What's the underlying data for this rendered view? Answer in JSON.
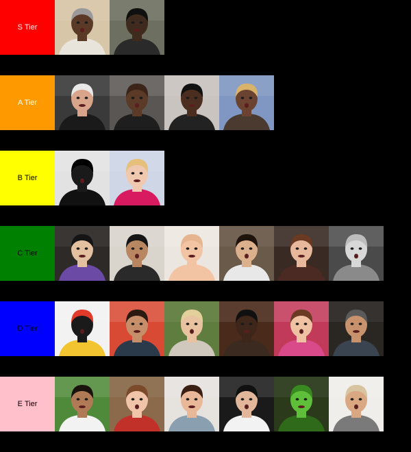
{
  "tiers": [
    {
      "key": "s",
      "label": "S Tier",
      "color": "#ff0000",
      "text_color": "#ffffff",
      "items": [
        {
          "name": "man-gray-durag-surprised",
          "bg": "#d8c6a8",
          "skin": "#5a3a26",
          "hair": "#9a9a9a",
          "shirt": "#e8e4dc"
        },
        {
          "name": "man-black-cap-shocked",
          "bg": "#6d7060",
          "skin": "#3f2a1e",
          "hair": "#101010",
          "shirt": "#2a2a2a"
        }
      ]
    },
    {
      "key": "a",
      "label": "A Tier",
      "color": "#ff9900",
      "text_color": "#ffffff",
      "items": [
        {
          "name": "older-man-white-hair",
          "bg": "#3a3a3a",
          "skin": "#d9a48c",
          "hair": "#e8e8e8",
          "shirt": "#1a1a1a"
        },
        {
          "name": "bald-man-smiling",
          "bg": "#5a5654",
          "skin": "#5b3a28",
          "hair": "#3b2418",
          "shirt": "#1e1e1e"
        },
        {
          "name": "man-headphones-smiling",
          "bg": "#c9c4c0",
          "skin": "#4b2e1f",
          "hair": "#111111",
          "shirt": "#222222"
        },
        {
          "name": "woman-blonde-wig",
          "bg": "#7f97c2",
          "skin": "#6b4330",
          "hair": "#d9b36a",
          "shirt": "#4a3a30"
        }
      ]
    },
    {
      "key": "b",
      "label": "B Tier",
      "color": "#ffff00",
      "text_color": "#000000",
      "items": [
        {
          "name": "black-figurine-statue",
          "bg": "#e2e2e2",
          "skin": "#1a1a1a",
          "hair": "#000000",
          "shirt": "#111111"
        },
        {
          "name": "doll-lying-down",
          "bg": "#cfd6e6",
          "skin": "#f0c8b0",
          "hair": "#e6c07a",
          "shirt": "#d81b60"
        }
      ]
    },
    {
      "key": "c",
      "label": "C Tier",
      "color": "#008000",
      "text_color": "#000000",
      "items": [
        {
          "name": "person-round-glasses",
          "bg": "#2e2a28",
          "skin": "#e3c0a0",
          "hair": "#151515",
          "shirt": "#6b4aa6"
        },
        {
          "name": "man-squinting",
          "bg": "#d9d4cc",
          "skin": "#b98662",
          "hair": "#151515",
          "shirt": "#2a2a2a"
        },
        {
          "name": "baby-smiling",
          "bg": "#ece6e0",
          "skin": "#f2c4a4",
          "hair": "#e6b48e",
          "shirt": "#f2c4a4"
        },
        {
          "name": "teen-grimacing",
          "bg": "#6a5a4a",
          "skin": "#dbb08c",
          "hair": "#1f140c",
          "shirt": "#e8e8e8"
        },
        {
          "name": "girl-braids-surprised",
          "bg": "#3a2a24",
          "skin": "#e8b89c",
          "hair": "#6a3a22",
          "shirt": "#4a2a22"
        },
        {
          "name": "toddler-grayscale-laughing",
          "bg": "#4a4a4a",
          "skin": "#d8d8d8",
          "hair": "#bdbdbd",
          "shirt": "#8a8a8a"
        }
      ]
    },
    {
      "key": "d",
      "label": "D Tier",
      "color": "#0000ff",
      "text_color": "#000000",
      "items": [
        {
          "name": "fruit-sad-face-plate",
          "bg": "#f2f2f2",
          "skin": "#1a1a1a",
          "hair": "#e23a2a",
          "shirt": "#f2c530"
        },
        {
          "name": "bearded-man-headphones",
          "bg": "#d84a34",
          "skin": "#c78e6a",
          "hair": "#2a1a12",
          "shirt": "#2a3a4a"
        },
        {
          "name": "blonde-woman-forest",
          "bg": "#5f7d3e",
          "skin": "#e9c2a2",
          "hair": "#e3cf9a",
          "shirt": "#d0c8bc"
        },
        {
          "name": "man-headphones-dark",
          "bg": "#4a2a1a",
          "skin": "#3f261a",
          "hair": "#101010",
          "shirt": "#3a2a20"
        },
        {
          "name": "girl-hand-mouth",
          "bg": "#c23a5a",
          "skin": "#efc2a4",
          "hair": "#6a3a22",
          "shirt": "#d84a8a"
        },
        {
          "name": "man-beanie-serious",
          "bg": "#2a2622",
          "skin": "#c8926c",
          "hair": "#5a5a5a",
          "shirt": "#3a4450"
        }
      ]
    },
    {
      "key": "e",
      "label": "E Tier",
      "color": "#ffc0cb",
      "text_color": "#000000",
      "items": [
        {
          "name": "girl-soccer-field",
          "bg": "#4f8a3a",
          "skin": "#b07a56",
          "hair": "#1a120c",
          "shirt": "#f2f2f2"
        },
        {
          "name": "girl-shocked-open-mouth",
          "bg": "#8a6a4a",
          "skin": "#f0c4a8",
          "hair": "#7a4a2a",
          "shirt": "#c2302a"
        },
        {
          "name": "teen-curly-hair",
          "bg": "#e6e2de",
          "skin": "#e8b898",
          "hair": "#3a1f12",
          "shirt": "#8aa0b0"
        },
        {
          "name": "boy-gasping",
          "bg": "#1a1a1a",
          "skin": "#e2b69a",
          "hair": "#101010",
          "shirt": "#f2f2f2"
        },
        {
          "name": "green-peppers-faces",
          "bg": "#2a3a1a",
          "skin": "#5fbf3a",
          "hair": "#3a8a22",
          "shirt": "#2f6a1a"
        },
        {
          "name": "woman-bucket-hat",
          "bg": "#f0eeea",
          "skin": "#d9a882",
          "hair": "#d8c4a0",
          "shirt": "#7a7a7a"
        }
      ]
    }
  ]
}
